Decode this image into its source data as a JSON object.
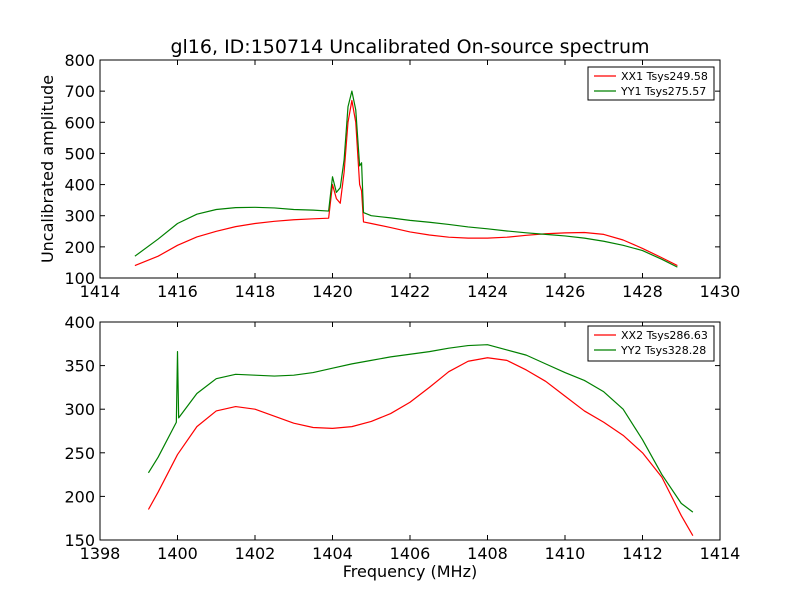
{
  "figure_title": "gl16, ID:150714 Uncalibrated On-source spectrum",
  "colors": {
    "xx": "#ff0000",
    "yy": "#008000"
  },
  "chart_data": [
    {
      "type": "line",
      "panel": "top",
      "title": "gl16, ID:150714 Uncalibrated On-source spectrum",
      "xlabel": "",
      "ylabel": "Uncalibrated amplitude",
      "xlim": [
        1414,
        1430
      ],
      "ylim": [
        100,
        800
      ],
      "xticks": [
        "1414",
        "1416",
        "1418",
        "1420",
        "1422",
        "1424",
        "1426",
        "1428",
        "1430"
      ],
      "yticks": [
        "100",
        "200",
        "300",
        "400",
        "500",
        "600",
        "700",
        "800"
      ],
      "legend_position": "top-right",
      "series": [
        {
          "name": "XX1 Tsys249.58",
          "color": "#ff0000",
          "x": [
            1414.9,
            1415.5,
            1416,
            1416.5,
            1417,
            1417.5,
            1418,
            1418.5,
            1419,
            1419.5,
            1419.9,
            1420.0,
            1420.1,
            1420.2,
            1420.3,
            1420.4,
            1420.5,
            1420.6,
            1420.7,
            1420.75,
            1420.8,
            1421.0,
            1421.5,
            1422,
            1422.5,
            1423,
            1423.5,
            1424,
            1424.5,
            1425,
            1425.5,
            1426,
            1426.5,
            1427,
            1427.5,
            1428,
            1428.5,
            1428.9
          ],
          "y": [
            140,
            170,
            205,
            232,
            250,
            265,
            275,
            282,
            287,
            290,
            292,
            400,
            355,
            340,
            440,
            600,
            670,
            600,
            400,
            380,
            280,
            275,
            262,
            248,
            238,
            231,
            228,
            228,
            231,
            237,
            242,
            245,
            246,
            240,
            222,
            195,
            165,
            140
          ]
        },
        {
          "name": "YY1 Tsys275.57",
          "color": "#008000",
          "x": [
            1414.9,
            1415.5,
            1416,
            1416.5,
            1417,
            1417.5,
            1418,
            1418.5,
            1419,
            1419.5,
            1419.9,
            1420.0,
            1420.1,
            1420.2,
            1420.3,
            1420.4,
            1420.5,
            1420.6,
            1420.7,
            1420.75,
            1420.8,
            1421.0,
            1421.5,
            1422,
            1422.5,
            1423,
            1423.5,
            1424,
            1424.5,
            1425,
            1425.5,
            1426,
            1426.5,
            1427,
            1427.5,
            1428,
            1428.5,
            1428.9
          ],
          "y": [
            170,
            225,
            275,
            305,
            320,
            326,
            327,
            325,
            320,
            318,
            315,
            425,
            375,
            390,
            480,
            650,
            700,
            640,
            460,
            470,
            310,
            300,
            293,
            285,
            279,
            272,
            264,
            258,
            251,
            245,
            240,
            235,
            228,
            218,
            205,
            188,
            160,
            135
          ]
        }
      ]
    },
    {
      "type": "line",
      "panel": "bottom",
      "title": "",
      "xlabel": "Frequency (MHz)",
      "ylabel": "",
      "xlim": [
        1398,
        1414
      ],
      "ylim": [
        150,
        400
      ],
      "xticks": [
        "1398",
        "1400",
        "1402",
        "1404",
        "1406",
        "1408",
        "1410",
        "1412",
        "1414"
      ],
      "yticks": [
        "150",
        "200",
        "250",
        "300",
        "350",
        "400"
      ],
      "legend_position": "top-right",
      "series": [
        {
          "name": "XX2 Tsys286.63",
          "color": "#ff0000",
          "x": [
            1399.25,
            1399.5,
            1400,
            1400.5,
            1401,
            1401.5,
            1402,
            1402.5,
            1403,
            1403.5,
            1404,
            1404.5,
            1405,
            1405.5,
            1406,
            1406.5,
            1407,
            1407.5,
            1408,
            1408.5,
            1409,
            1409.5,
            1410,
            1410.5,
            1411,
            1411.5,
            1412,
            1412.5,
            1413,
            1413.3
          ],
          "y": [
            185,
            205,
            248,
            280,
            298,
            303,
            300,
            292,
            284,
            279,
            278,
            280,
            286,
            295,
            308,
            325,
            343,
            355,
            359,
            356,
            345,
            332,
            315,
            298,
            285,
            270,
            250,
            222,
            178,
            155
          ]
        },
        {
          "name": "YY2 Tsys328.28",
          "color": "#008000",
          "x": [
            1399.25,
            1399.5,
            1399.97,
            1400.0,
            1400.03,
            1400.5,
            1401,
            1401.5,
            1402,
            1402.5,
            1403,
            1403.5,
            1404,
            1404.5,
            1405,
            1405.5,
            1406,
            1406.5,
            1407,
            1407.5,
            1408,
            1408.5,
            1409,
            1409.5,
            1410,
            1410.5,
            1411,
            1411.5,
            1412,
            1412.5,
            1413,
            1413.3
          ],
          "y": [
            227,
            245,
            285,
            366,
            290,
            318,
            335,
            340,
            339,
            338,
            339,
            342,
            347,
            352,
            356,
            360,
            363,
            366,
            370,
            373,
            374,
            368,
            362,
            352,
            342,
            333,
            320,
            300,
            265,
            225,
            192,
            182
          ]
        }
      ]
    }
  ]
}
